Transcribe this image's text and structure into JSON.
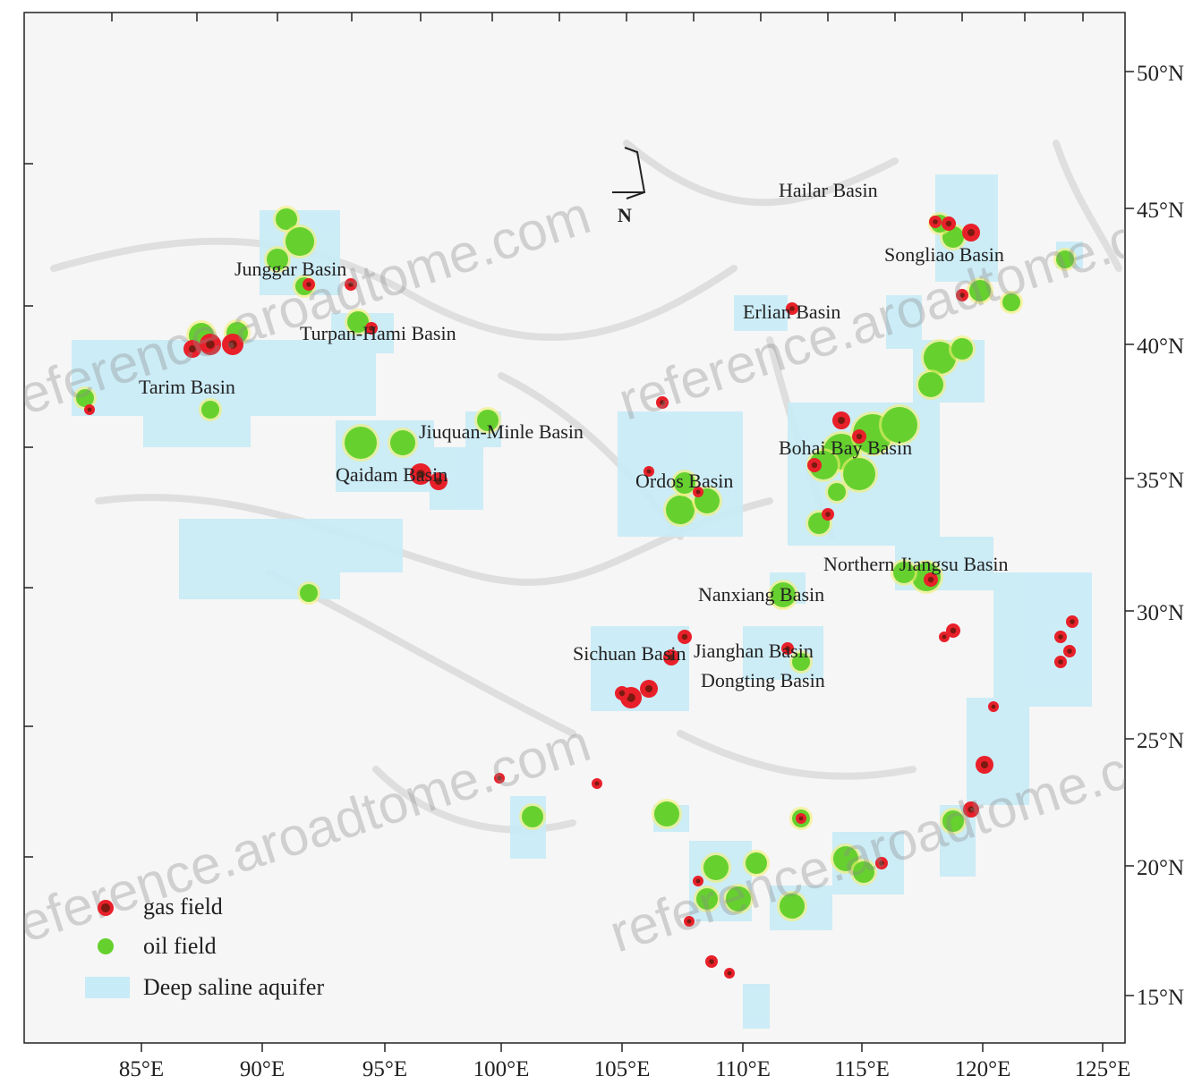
{
  "map": {
    "x_ticks": [
      "85°E",
      "90°E",
      "95°E",
      "100°E",
      "105°E",
      "110°E",
      "115°E",
      "120°E",
      "125°E"
    ],
    "y_ticks": [
      "50°N",
      "45°N",
      "40°N",
      "35°N",
      "30°N",
      "25°N",
      "20°N",
      "15°N"
    ],
    "north_label": "N",
    "basins": [
      "Junggar Basin",
      "Turpan-Hami Basin",
      "Tarim Basin",
      "Qaidam Basin",
      "Jiuquan-Minle Basin",
      "Ordos Basin",
      "Hailar Basin",
      "Songliao Basin",
      "Erlian Basin",
      "Bohai Bay Basin",
      "Northern Jiangsu Basin",
      "Nanxiang Basin",
      "Sichuan Basin",
      "Jianghan Basin",
      "Dongting Basin"
    ],
    "legend": {
      "gas": "gas field",
      "oil": "oil field",
      "aquifer": "Deep saline aquifer"
    },
    "watermark": "reference.aroadtome.com",
    "colors": {
      "aquifer": "#c8ecf7",
      "land": "#f4f4f4",
      "gas": "#e8202a",
      "gas_core": "#7a1a10",
      "oil": "#66d12e",
      "oil_halo": "#f4f070",
      "frame": "#222222"
    }
  }
}
